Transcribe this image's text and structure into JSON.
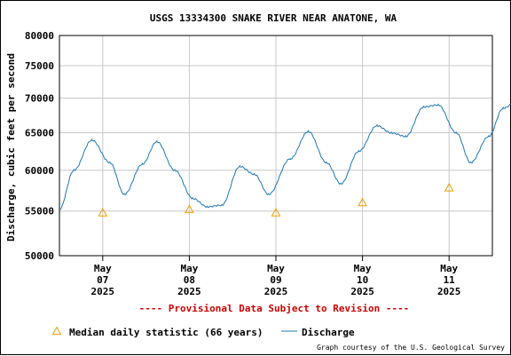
{
  "chart_data": {
    "type": "line",
    "title": "USGS 13334300 SNAKE RIVER NEAR ANATONE, WA",
    "ylabel": "Discharge, cubic feet per second",
    "xlabel": "",
    "y_axis": {
      "scale": "log",
      "range": [
        50000,
        80000
      ],
      "ticks": [
        50000,
        55000,
        60000,
        65000,
        70000,
        75000,
        80000
      ],
      "tick_labels": [
        "50000",
        "55000",
        "60000",
        "65000",
        "70000",
        "75000",
        "80000"
      ]
    },
    "x_axis": {
      "range_days": [
        "2025-05-06 12:00",
        "2025-05-11 12:00"
      ],
      "ticks": [
        {
          "date": "2025-05-07",
          "month": "May",
          "day": "07",
          "year": "2025"
        },
        {
          "date": "2025-05-08",
          "month": "May",
          "day": "08",
          "year": "2025"
        },
        {
          "date": "2025-05-09",
          "month": "May",
          "day": "09",
          "year": "2025"
        },
        {
          "date": "2025-05-10",
          "month": "May",
          "day": "10",
          "year": "2025"
        },
        {
          "date": "2025-05-11",
          "month": "May",
          "day": "11",
          "year": "2025"
        }
      ]
    },
    "grid": true,
    "provisional_note": "---- Provisional Data Subject to Revision ----",
    "credit": "Graph courtesy of the U.S. Geological Survey",
    "series": [
      {
        "name": "Discharge",
        "color": "#1f77b4",
        "points": [
          [
            "2025-05-06 12:00",
            55200
          ],
          [
            "2025-05-06 16:00",
            60000
          ],
          [
            "2025-05-06 21:00",
            64000
          ],
          [
            "2025-05-07 02:00",
            61000
          ],
          [
            "2025-05-07 06:00",
            57000
          ],
          [
            "2025-05-07 11:00",
            60800
          ],
          [
            "2025-05-07 15:00",
            63800
          ],
          [
            "2025-05-07 20:00",
            60000
          ],
          [
            "2025-05-08 01:00",
            56500
          ],
          [
            "2025-05-08 05:00",
            55500
          ],
          [
            "2025-05-08 09:00",
            55700
          ],
          [
            "2025-05-08 14:00",
            60500
          ],
          [
            "2025-05-08 18:00",
            59500
          ],
          [
            "2025-05-08 22:00",
            57000
          ],
          [
            "2025-05-09 04:00",
            61500
          ],
          [
            "2025-05-09 09:00",
            65200
          ],
          [
            "2025-05-09 14:00",
            61000
          ],
          [
            "2025-05-09 18:00",
            58300
          ],
          [
            "2025-05-09 23:00",
            62500
          ],
          [
            "2025-05-10 04:00",
            66000
          ],
          [
            "2025-05-10 08:00",
            65000
          ],
          [
            "2025-05-10 12:00",
            64500
          ],
          [
            "2025-05-10 17:00",
            68700
          ],
          [
            "2025-05-10 21:00",
            69000
          ],
          [
            "2025-05-11 02:00",
            65000
          ],
          [
            "2025-05-11 06:00",
            61000
          ],
          [
            "2025-05-11 11:00",
            64500
          ],
          [
            "2025-05-11 15:00",
            68500
          ],
          [
            "2025-05-11 20:00",
            70200
          ],
          [
            "2025-05-12 01:00",
            68500
          ],
          [
            "2025-05-12 05:00",
            69000
          ],
          [
            "2025-05-12 10:00",
            74000
          ],
          [
            "2025-05-12 14:00",
            75300
          ],
          [
            "2025-05-12 18:00",
            72000
          ],
          [
            "2025-05-12 23:00",
            67500
          ],
          [
            "2025-05-13 03:00",
            67000
          ],
          [
            "2025-05-13 08:00",
            71000
          ],
          [
            "2025-05-13 13:00",
            73000
          ],
          [
            "2025-05-13 17:00",
            74500
          ],
          [
            "2025-05-13 20:00",
            77000
          ]
        ]
      },
      {
        "name": "Median daily statistic (66 years)",
        "marker": "triangle",
        "color": "#e8a000",
        "points": [
          [
            "2025-05-07",
            54800
          ],
          [
            "2025-05-08",
            55200
          ],
          [
            "2025-05-09",
            54800
          ],
          [
            "2025-05-10",
            56000
          ],
          [
            "2025-05-11",
            57800
          ]
        ]
      }
    ],
    "legend": {
      "placement": "bottom",
      "entries": [
        "Median daily statistic (66 years)",
        "Discharge"
      ]
    }
  }
}
